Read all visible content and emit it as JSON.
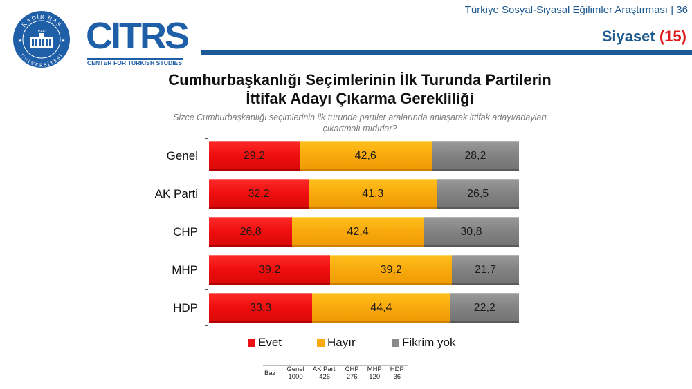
{
  "header": {
    "report_title": "Türkiye Sosyal-Siyasal Eğilimler Araştırması | 36",
    "section": "Siyaset",
    "section_number": "(15)"
  },
  "logos": {
    "university": {
      "top_text": "KADİR HAS",
      "bottom_text": "ÜNİVERSİTESİ",
      "year": "1997"
    },
    "citrs": {
      "word": "CITRS",
      "subtitle": "CENTER FOR TURKISH STUDIES"
    }
  },
  "colors": {
    "brand_blue": "#1f5a8f",
    "accent_red": "#e01b1b",
    "evet": "#ee1111",
    "hayir": "#f8a90c",
    "fikrim_yok": "#828282"
  },
  "chart_data": {
    "type": "bar",
    "orientation": "horizontal",
    "stacked": true,
    "percent_stacked": true,
    "title": "Cumhurbaşkanlığı Seçimlerinin İlk Turunda Partilerin İttifak Adayı Çıkarma Gerekliliği",
    "title_line1": "Cumhurbaşkanlığı Seçimlerinin İlk Turunda Partilerin",
    "title_line2": "İttifak Adayı Çıkarma Gerekliliği",
    "subtitle": "Sizce Cumhurbaşkanlığı seçimlerinin ilk turunda partiler aralarında anlaşarak ittifak adayı/adayları çıkartmalı mıdırlar?",
    "subtitle_line1": "Sizce Cumhurbaşkanlığı seçimlerinin ilk turunda partiler aralarında anlaşarak ittifak adayı/adayları",
    "subtitle_line2": "çıkartmalı mıdırlar?",
    "xlabel": "",
    "ylabel": "",
    "xlim": [
      0,
      100
    ],
    "grid": false,
    "legend_position": "bottom",
    "categories": [
      "Genel",
      "AK Parti",
      "CHP",
      "MHP",
      "HDP"
    ],
    "series": [
      {
        "name": "Evet",
        "color": "#ee1111",
        "values": [
          29.2,
          32.2,
          26.8,
          39.2,
          33.3
        ],
        "labels": [
          "29,2",
          "32,2",
          "26,8",
          "39,2",
          "33,3"
        ]
      },
      {
        "name": "Hayır",
        "color": "#f8a90c",
        "values": [
          42.6,
          41.3,
          42.4,
          39.2,
          44.4
        ],
        "labels": [
          "42,6",
          "41,3",
          "42,4",
          "39,2",
          "44,4"
        ]
      },
      {
        "name": "Fikrim yok",
        "color": "#828282",
        "values": [
          28.2,
          26.5,
          30.8,
          21.7,
          22.2
        ],
        "labels": [
          "28,2",
          "26,5",
          "30,8",
          "21,7",
          "22,2"
        ]
      }
    ]
  },
  "legend": {
    "items": [
      "Evet",
      "Hayır",
      "Fikrim yok"
    ]
  },
  "baz_table": {
    "label": "Baz",
    "columns": [
      "Genel",
      "AK Parti",
      "CHP",
      "MHP",
      "HDP"
    ],
    "values": [
      "1000",
      "426",
      "276",
      "120",
      "36"
    ]
  }
}
